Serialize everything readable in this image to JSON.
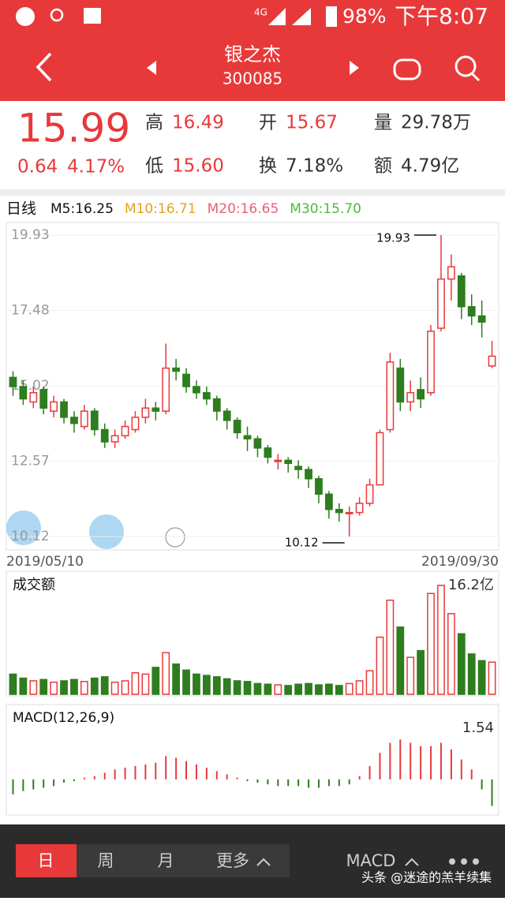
{
  "status": {
    "network": "4G",
    "battery": "98%",
    "time": "下午8:07"
  },
  "header": {
    "name": "银之杰",
    "code": "300085"
  },
  "quote": {
    "price": "15.99",
    "change": "0.64",
    "pct": "4.17%",
    "high_label": "高",
    "high": "16.49",
    "open_label": "开",
    "open": "15.67",
    "vol_label": "量",
    "vol": "29.78万",
    "low_label": "低",
    "low": "15.60",
    "turnover_label": "换",
    "turnover": "7.18%",
    "amount_label": "额",
    "amount": "4.79亿"
  },
  "chart_data": [
    {
      "type": "candlestick",
      "title": "日线",
      "ma_labels": [
        {
          "text": "M5:16.25",
          "color": "#111111"
        },
        {
          "text": "M10:16.71",
          "color": "#e8a020"
        },
        {
          "text": "M20:16.65",
          "color": "#e8607a"
        },
        {
          "text": "M30:15.70",
          "color": "#4cbb3c"
        }
      ],
      "up_color": "#e8393a",
      "down_color": "#2e7d1f",
      "ylim": [
        10.12,
        19.93
      ],
      "yticks": [
        19.93,
        17.48,
        15.02,
        12.57,
        10.12
      ],
      "x_labels": [
        "2019/05/10",
        "2019/09/30"
      ],
      "annotations": [
        {
          "text": "19.93",
          "index": 42,
          "value": 19.93
        },
        {
          "text": "10.12",
          "index": 33,
          "value": 10.12
        }
      ],
      "open": [
        15.3,
        15.0,
        14.5,
        14.9,
        14.2,
        14.5,
        14.0,
        13.7,
        14.2,
        13.6,
        13.2,
        13.4,
        13.6,
        14.0,
        14.3,
        14.2,
        15.6,
        15.4,
        15.0,
        14.8,
        14.6,
        14.2,
        13.9,
        13.4,
        13.3,
        13.0,
        12.6,
        12.6,
        12.4,
        12.3,
        12.0,
        11.5,
        11.0,
        10.9,
        10.9,
        11.2,
        11.8,
        13.6,
        15.6,
        14.5,
        14.9,
        14.8,
        16.9,
        18.5,
        18.6,
        17.6,
        17.3,
        15.67
      ],
      "close": [
        15.0,
        14.6,
        14.8,
        14.3,
        14.5,
        14.0,
        13.8,
        14.2,
        13.6,
        13.2,
        13.4,
        13.7,
        14.0,
        14.3,
        14.2,
        15.6,
        15.5,
        15.0,
        14.8,
        14.6,
        14.2,
        13.9,
        13.5,
        13.3,
        13.0,
        12.7,
        12.6,
        12.5,
        12.3,
        12.0,
        11.5,
        11.0,
        10.9,
        10.9,
        11.2,
        11.8,
        13.5,
        15.8,
        14.5,
        14.8,
        14.6,
        16.8,
        18.5,
        18.9,
        17.6,
        17.3,
        17.1,
        15.99
      ],
      "high": [
        15.5,
        15.2,
        15.0,
        15.0,
        14.7,
        14.6,
        14.2,
        14.4,
        14.3,
        13.8,
        13.6,
        13.9,
        14.2,
        14.6,
        14.5,
        16.4,
        15.9,
        15.6,
        15.2,
        15.0,
        14.7,
        14.3,
        14.0,
        13.7,
        13.4,
        13.1,
        12.8,
        12.7,
        12.6,
        12.4,
        12.1,
        11.6,
        11.2,
        11.1,
        11.4,
        12.0,
        13.6,
        16.1,
        15.9,
        15.2,
        15.3,
        17.0,
        19.93,
        19.3,
        18.7,
        18.0,
        17.8,
        16.49
      ],
      "low": [
        14.7,
        14.4,
        14.3,
        14.1,
        14.0,
        13.8,
        13.5,
        13.6,
        13.4,
        13.0,
        13.0,
        13.3,
        13.5,
        13.8,
        13.9,
        14.1,
        15.2,
        14.8,
        14.6,
        14.4,
        13.9,
        13.6,
        13.3,
        12.9,
        12.7,
        12.5,
        12.3,
        12.2,
        12.0,
        11.7,
        11.2,
        10.7,
        10.6,
        10.12,
        10.8,
        11.1,
        11.8,
        13.5,
        14.2,
        14.2,
        14.3,
        14.7,
        16.8,
        17.8,
        17.2,
        17.0,
        16.6,
        15.6
      ]
    },
    {
      "type": "bar",
      "title": "成交额",
      "ylim": [
        0,
        16.2
      ],
      "yticks": [
        {
          "value": 16.2,
          "label": "16.2亿"
        }
      ],
      "values": [
        3.0,
        2.4,
        2.0,
        2.2,
        1.8,
        2.0,
        2.2,
        1.9,
        2.4,
        2.6,
        1.8,
        2.0,
        3.2,
        3.0,
        4.0,
        6.2,
        4.5,
        3.6,
        3.0,
        2.8,
        2.6,
        2.3,
        2.0,
        1.9,
        1.6,
        1.5,
        1.4,
        1.3,
        1.5,
        1.6,
        1.4,
        1.5,
        1.3,
        1.6,
        2.0,
        3.5,
        8.5,
        14.0,
        10.0,
        5.5,
        6.5,
        15.0,
        16.2,
        12.0,
        9.0,
        6.0,
        5.0,
        4.79
      ]
    },
    {
      "type": "bar",
      "title": "MACD(12,26,9)",
      "ylim": [
        -1.0,
        1.8
      ],
      "yticks": [
        1.54
      ],
      "values": [
        -0.45,
        -0.35,
        -0.3,
        -0.25,
        -0.2,
        -0.1,
        -0.05,
        0.05,
        0.1,
        0.2,
        0.3,
        0.35,
        0.4,
        0.45,
        0.5,
        0.7,
        0.65,
        0.55,
        0.45,
        0.35,
        0.25,
        0.15,
        0.05,
        -0.05,
        -0.1,
        -0.15,
        -0.2,
        -0.2,
        -0.2,
        -0.25,
        -0.25,
        -0.2,
        -0.2,
        -0.15,
        0.1,
        0.4,
        0.8,
        1.1,
        1.2,
        1.1,
        1.0,
        1.0,
        1.1,
        0.9,
        0.6,
        0.3,
        -0.3,
        -0.8
      ]
    }
  ],
  "tabs": [
    "日",
    "周",
    "月",
    "更多"
  ],
  "indicator": "MACD",
  "watermark": "头条 @迷途的羔羊续集"
}
